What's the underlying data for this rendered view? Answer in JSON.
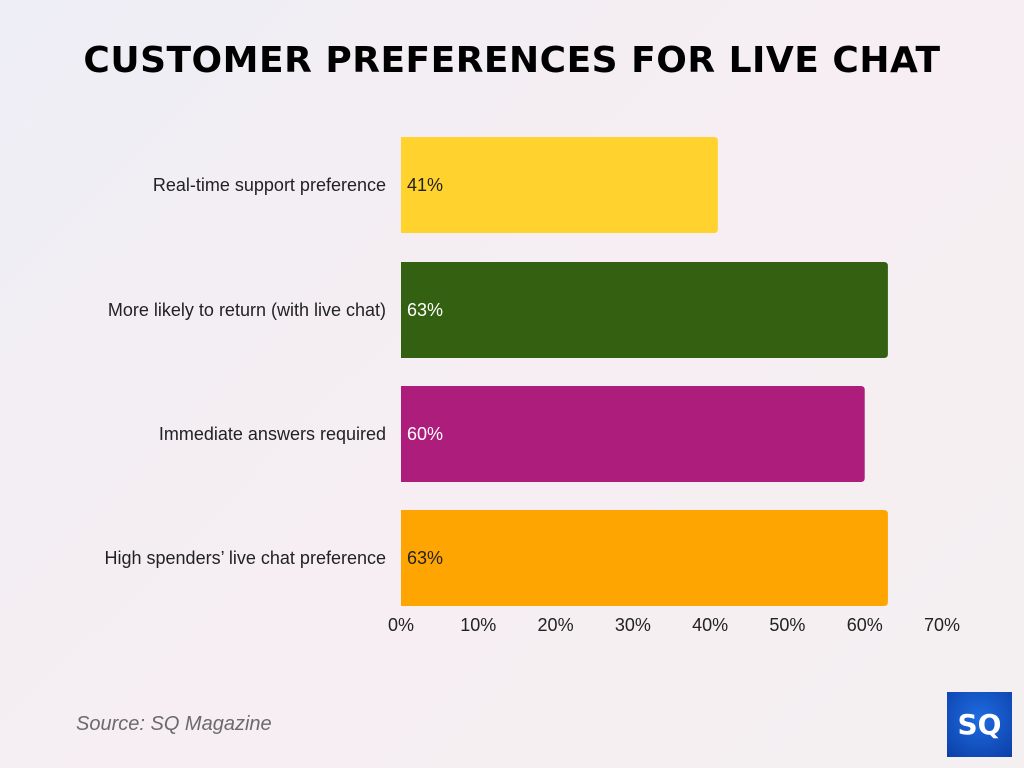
{
  "chart_data": {
    "type": "bar",
    "orientation": "horizontal",
    "title": "CUSTOMER PREFERENCES FOR LIVE CHAT",
    "categories": [
      "Real-time support preference",
      "More likely to return (with live chat)",
      "Immediate answers required",
      "High spenders’ live chat preference"
    ],
    "values": [
      41,
      63,
      60,
      63
    ],
    "data_labels": [
      "41%",
      "63%",
      "60%",
      "63%"
    ],
    "colors": [
      "#ffd22e",
      "#336111",
      "#ad1d7c",
      "#ffa502"
    ],
    "label_colors": [
      "#222222",
      "#ffffff",
      "#ffffff",
      "#222222"
    ],
    "xlim": [
      0,
      70
    ],
    "xticks": [
      "0%",
      "10%",
      "20%",
      "30%",
      "40%",
      "50%",
      "60%",
      "70%"
    ],
    "grid": false
  },
  "source": "Source: SQ Magazine",
  "logo_text": "SQ"
}
